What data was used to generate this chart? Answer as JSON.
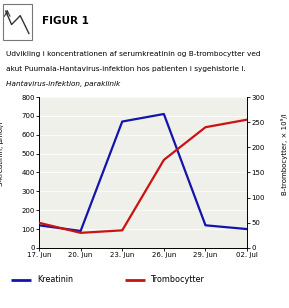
{
  "title_box": "FIGUR 1",
  "description_line1": "Udvikling i koncentrationen af serumkreatinin og B-trombocytter ved",
  "description_line2": "akut Puumala-Hantavirus-infektion hos patienten i sygehistorie I.",
  "subtitle": "Hantavirus-infektion, paraklinik",
  "ylabel_left": "S-kreatinin, μmol/l",
  "ylabel_right": "B-trombocytter, × 10⁹/l",
  "x_labels": [
    "17. jun",
    "20. jun",
    "23. jun",
    "26. jun",
    "29. jun",
    "02. jul"
  ],
  "x_values": [
    0,
    3,
    6,
    9,
    12,
    15
  ],
  "kreatinin_x": [
    0,
    3,
    6,
    9,
    12,
    15
  ],
  "kreatinin_y": [
    120,
    90,
    670,
    710,
    120,
    100
  ],
  "trombocytter_x": [
    0,
    3,
    6,
    9,
    12,
    15
  ],
  "trombocytter_y": [
    50,
    30,
    35,
    175,
    240,
    255
  ],
  "ylim_left": [
    0,
    800
  ],
  "ylim_right": [
    0,
    300
  ],
  "yticks_left": [
    0,
    100,
    200,
    300,
    400,
    500,
    600,
    700,
    800
  ],
  "yticks_right": [
    0,
    50,
    100,
    150,
    200,
    250,
    300
  ],
  "kreatinin_color": "#1414aa",
  "trombocytter_color": "#cc1111",
  "plot_bg_color": "#f0f0ea",
  "header_bg": "#c8c8c8",
  "header_border": "#aaaaaa",
  "legend_kreatinin": "Kreatinin",
  "legend_trombocytter": "Trombocytter",
  "figsize": [
    2.89,
    3.08
  ],
  "dpi": 100
}
